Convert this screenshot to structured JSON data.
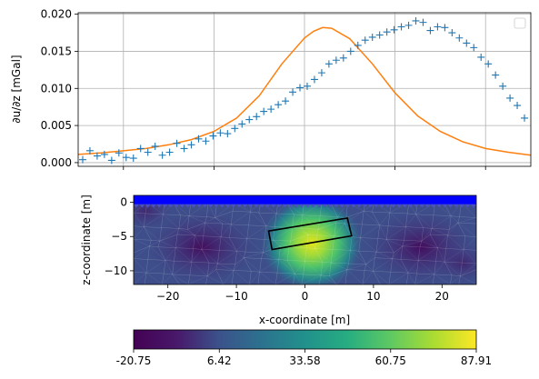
{
  "chart_data": [
    {
      "type": "line",
      "ylabel": "∂u/∂z [mGal]",
      "xlim": [
        -25,
        25
      ],
      "ylim": [
        -0.0005,
        0.0202
      ],
      "yticks": [
        "0.000",
        "0.005",
        "0.010",
        "0.015",
        "0.020"
      ],
      "grid": true,
      "legend": "top-right (empty)",
      "colors": {
        "markers": "#1f77b4",
        "curve": "#ff7f0e"
      },
      "series": [
        {
          "kind": "markers",
          "x": [
            -24.5,
            -23.7,
            -22.9,
            -22.1,
            -21.3,
            -20.5,
            -19.7,
            -18.9,
            -18.1,
            -17.3,
            -16.5,
            -15.7,
            -14.9,
            -14.1,
            -13.3,
            -12.5,
            -11.7,
            -10.9,
            -10.1,
            -9.3,
            -8.5,
            -7.7,
            -6.9,
            -6.1,
            -5.3,
            -4.5,
            -3.7,
            -2.9,
            -2.1,
            -1.3,
            -0.5,
            0.3,
            1.1,
            1.9,
            2.7,
            3.5,
            4.3,
            5.1,
            5.9,
            6.7,
            7.5,
            8.3,
            9.1,
            9.9,
            10.7,
            11.5,
            12.3,
            13.1,
            13.9,
            14.7,
            15.5,
            16.3,
            17.1,
            17.9,
            18.7,
            19.5,
            20.3,
            21.1,
            21.9,
            22.7,
            23.5,
            24.3
          ],
          "y": [
            0.0004,
            0.0016,
            0.0009,
            0.0011,
            0.0003,
            0.0013,
            0.0007,
            0.0006,
            0.0019,
            0.0014,
            0.0022,
            0.001,
            0.0014,
            0.0026,
            0.0019,
            0.0024,
            0.0032,
            0.0029,
            0.0036,
            0.004,
            0.0039,
            0.0046,
            0.0052,
            0.0058,
            0.0062,
            0.0069,
            0.0072,
            0.0078,
            0.0083,
            0.0095,
            0.0101,
            0.0103,
            0.0112,
            0.0121,
            0.0133,
            0.0138,
            0.0141,
            0.015,
            0.0158,
            0.0165,
            0.0169,
            0.0172,
            0.0176,
            0.0179,
            0.0183,
            0.0185,
            0.0191,
            0.0189,
            0.0178,
            0.0183,
            0.0182,
            0.0175,
            0.0168,
            0.0161,
            0.0155,
            0.0142,
            0.0133,
            0.0118,
            0.0103,
            0.0087,
            0.0077,
            0.006
          ]
        },
        {
          "kind": "line",
          "x": [
            -25,
            -22.5,
            -20,
            -17.5,
            -15,
            -12.5,
            -10,
            -7.5,
            -5,
            -2.5,
            0,
            1,
            2,
            3,
            5,
            7.5,
            10,
            12.5,
            15,
            17.5,
            20,
            22.5,
            25
          ],
          "y": [
            0.0011,
            0.0013,
            0.0016,
            0.0019,
            0.0024,
            0.0031,
            0.0042,
            0.006,
            0.009,
            0.0133,
            0.0168,
            0.0177,
            0.0182,
            0.0181,
            0.0167,
            0.0133,
            0.0094,
            0.0063,
            0.0042,
            0.0028,
            0.0019,
            0.0014,
            0.001
          ]
        }
      ]
    },
    {
      "type": "heatmap",
      "xlabel": "x-coordinate [m]",
      "ylabel": "z-coordinate [m]",
      "xlim": [
        -25,
        25
      ],
      "ylim": [
        -12,
        1
      ],
      "xticks": [
        -20,
        -10,
        0,
        10,
        20
      ],
      "yticks": [
        0,
        -5,
        -10
      ],
      "colormap": "viridis",
      "surface_color": "#0000ff",
      "anomaly_center": [
        1,
        -6
      ],
      "rectangle": {
        "corners": [
          [
            -5.3,
            -4.2
          ],
          [
            6.2,
            -2.3
          ],
          [
            6.8,
            -4.9
          ],
          [
            -4.8,
            -6.9
          ]
        ],
        "stroke": "#000000"
      },
      "colorbar": {
        "min": -20.75,
        "max": 87.91,
        "ticks": [
          "-20.75",
          "6.42",
          "33.58",
          "60.75",
          "87.91"
        ]
      }
    }
  ]
}
